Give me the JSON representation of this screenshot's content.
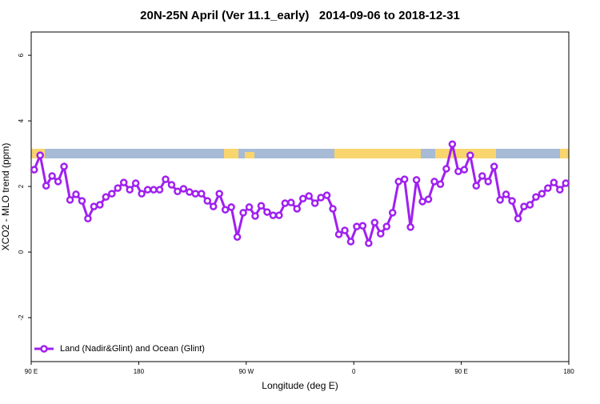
{
  "chart_data": {
    "type": "line",
    "title": "20N-25N April (Ver 11.1_early)   2014-09-06 to 2018-12-31",
    "xlabel": "Longitude (deg E)",
    "ylabel": "XCO2 - MLO trend (ppm)",
    "xlim": [
      90,
      540
    ],
    "xticks": [
      {
        "value": 90,
        "label": "90 E"
      },
      {
        "value": 180,
        "label": "180"
      },
      {
        "value": 270,
        "label": "90 W"
      },
      {
        "value": 360,
        "label": "0"
      },
      {
        "value": 450,
        "label": "90 E"
      },
      {
        "value": 540,
        "label": "180"
      }
    ],
    "ylim": [
      -3.34,
      6.71
    ],
    "yticks": [
      -2,
      0,
      2,
      4,
      6
    ],
    "legend": "bottom-left",
    "x": [
      92.5,
      97.5,
      102.5,
      107.5,
      112.5,
      117.5,
      122.5,
      127.5,
      132.5,
      137.5,
      142.5,
      147.5,
      152.5,
      157.5,
      162.5,
      167.5,
      172.5,
      177.5,
      182.5,
      187.5,
      192.5,
      197.5,
      202.5,
      207.5,
      212.5,
      217.5,
      222.5,
      227.5,
      232.5,
      237.5,
      242.5,
      247.5,
      252.5,
      257.5,
      262.5,
      267.5,
      272.5,
      277.5,
      282.5,
      287.5,
      292.5,
      297.5,
      302.5,
      307.5,
      312.5,
      317.5,
      322.5,
      327.5,
      332.5,
      337.5,
      342.5,
      347.5,
      352.5,
      357.5,
      362.5,
      367.5,
      372.5,
      377.5,
      382.5,
      387.5,
      392.5,
      397.5,
      402.5,
      407.5,
      412.5,
      417.5,
      422.5,
      427.5,
      432.5,
      437.5,
      442.5,
      447.5,
      452.5,
      457.5,
      462.5,
      467.5,
      472.5,
      477.5,
      482.5,
      487.5,
      492.5,
      497.5,
      502.5,
      507.5,
      512.5,
      517.5,
      522.5,
      527.5,
      532.5,
      537.5
    ],
    "series": [
      {
        "name": "Land (Nadir&Glint) and Ocean (Glint)",
        "color": "#a020f0",
        "values": [
          2.51,
          2.95,
          2.02,
          2.32,
          2.15,
          2.61,
          1.59,
          1.76,
          1.56,
          1.02,
          1.39,
          1.44,
          1.68,
          1.78,
          1.95,
          2.12,
          1.9,
          2.1,
          1.78,
          1.9,
          1.9,
          1.9,
          2.22,
          2.05,
          1.85,
          1.93,
          1.83,
          1.78,
          1.78,
          1.56,
          1.39,
          1.78,
          1.29,
          1.37,
          0.46,
          1.2,
          1.37,
          1.1,
          1.41,
          1.22,
          1.12,
          1.12,
          1.49,
          1.51,
          1.32,
          1.63,
          1.71,
          1.49,
          1.66,
          1.73,
          1.32,
          0.54,
          0.66,
          0.32,
          0.78,
          0.8,
          0.27,
          0.9,
          0.56,
          0.78,
          1.2,
          2.15,
          2.22,
          0.76,
          2.2,
          1.54,
          1.61,
          2.15,
          2.07,
          2.54,
          3.29,
          2.46,
          2.51,
          2.95,
          2.02,
          2.32,
          2.15,
          2.61,
          1.59,
          1.76,
          1.56,
          1.02,
          1.39,
          1.44,
          1.68,
          1.78,
          1.95,
          2.12,
          1.9,
          2.1
        ]
      }
    ]
  }
}
